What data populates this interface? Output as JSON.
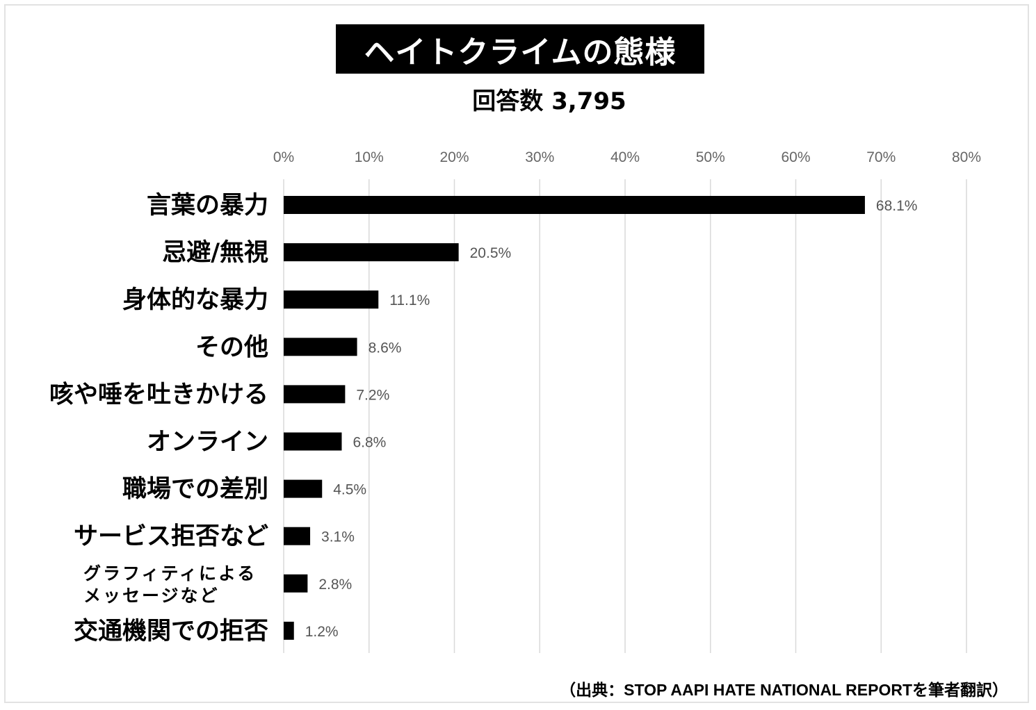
{
  "chart_data": {
    "type": "bar",
    "orientation": "horizontal",
    "title": "ヘイトクライムの態様",
    "subtitle": "回答数  3,795",
    "categories": [
      "言葉の暴力",
      "忌避/無視",
      "身体的な暴力",
      "その他",
      "咳や唾を吐きかける",
      "オンライン",
      "職場での差別",
      "サービス拒否など",
      "グラフィティによる\nメッセージなど",
      "交通機関での拒否"
    ],
    "values": [
      68.1,
      20.5,
      11.1,
      8.6,
      7.2,
      6.8,
      4.5,
      3.1,
      2.8,
      1.2
    ],
    "value_labels": [
      "68.1%",
      "20.5%",
      "11.1%",
      "8.6%",
      "7.2%",
      "6.8%",
      "4.5%",
      "3.1%",
      "2.8%",
      "1.2%"
    ],
    "xlim": [
      0,
      80
    ],
    "xticks": [
      "0%",
      "10%",
      "20%",
      "30%",
      "40%",
      "50%",
      "60%",
      "70%",
      "80%"
    ],
    "grid": true,
    "bar_color": "#000000",
    "source": "（出典：STOP AAPI HATE NATIONAL REPORTを筆者翻訳）"
  }
}
